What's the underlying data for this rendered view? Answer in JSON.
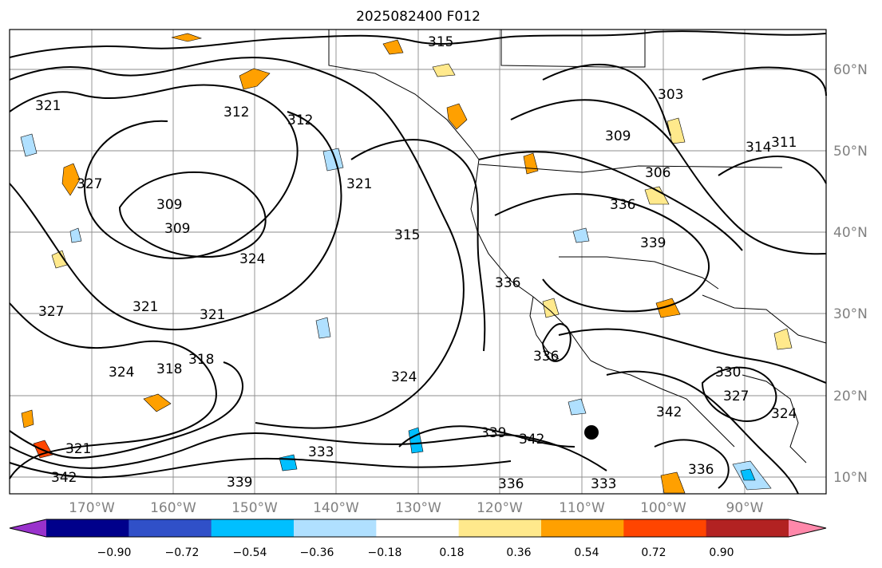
{
  "title": "2025082400 F012",
  "lon_labels": [
    "170°W",
    "160°W",
    "150°W",
    "140°W",
    "130°W",
    "120°W",
    "110°W",
    "100°W",
    "90°W"
  ],
  "lat_labels": [
    "60°N",
    "50°N",
    "40°N",
    "30°N",
    "20°N",
    "10°N"
  ],
  "colorbar": {
    "colors": [
      "#9932cc",
      "#00008b",
      "#3050c8",
      "#00bfff",
      "#b0e0ff",
      "#ffffff",
      "#ffe98c",
      "#ffa000",
      "#ff4500",
      "#b22222",
      "#ff88aa"
    ],
    "tick_labels": [
      "−0.90",
      "−0.72",
      "−0.54",
      "−0.36",
      "−0.18",
      "0.18",
      "0.36",
      "0.54",
      "0.72",
      "0.90"
    ]
  },
  "contour_labels": [
    "315",
    "321",
    "312",
    "312",
    "309",
    "309",
    "327",
    "321",
    "324",
    "321",
    "321",
    "327",
    "321",
    "318",
    "318",
    "315",
    "324",
    "324",
    "333",
    "336",
    "336",
    "339",
    "342",
    "330",
    "327",
    "324",
    "342",
    "336",
    "336",
    "309",
    "303",
    "306",
    "314",
    "311",
    "336",
    "339",
    "342",
    "339",
    "333"
  ],
  "icons": {
    "marker": "black-dot-marker"
  }
}
